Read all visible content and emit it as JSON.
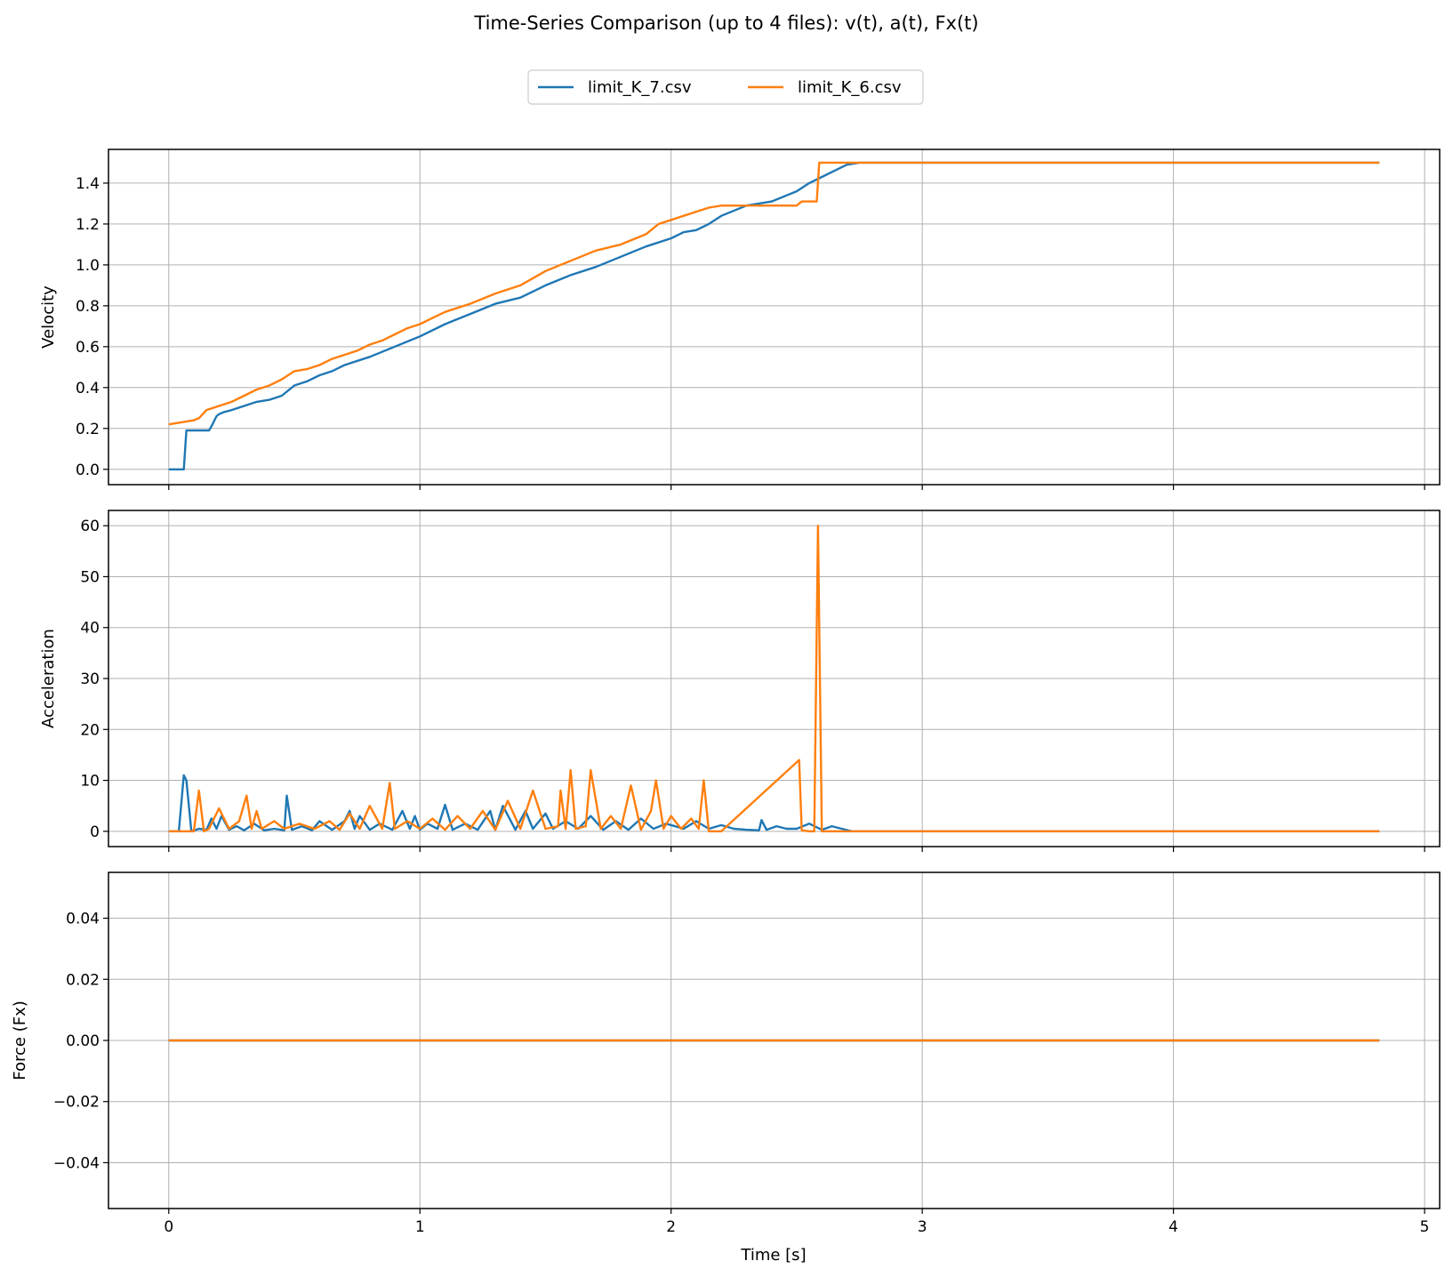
{
  "chart_data": {
    "type": "line",
    "title": "Time-Series Comparison (up to 4 files): v(t), a(t), Fx(t)",
    "legend": {
      "placement": "top-center",
      "entries": [
        {
          "name": "limit_K_7.csv",
          "color": "#1f77b4"
        },
        {
          "name": "limit_K_6.csv",
          "color": "#ff7f0e"
        }
      ]
    },
    "xlabel": "Time [s]",
    "xlim": [
      -0.24,
      5.06
    ],
    "x_ticks": [
      0,
      1,
      2,
      3,
      4,
      5
    ],
    "x_tick_labels": [
      "0",
      "1",
      "2",
      "3",
      "4",
      "5"
    ],
    "grid": true,
    "panels": [
      {
        "id": "velocity",
        "ylabel": "Velocity",
        "ylim": [
          -0.075,
          1.565
        ],
        "y_ticks": [
          0.0,
          0.2,
          0.4,
          0.6,
          0.8,
          1.0,
          1.2,
          1.4
        ],
        "y_tick_labels": [
          "0.0",
          "0.2",
          "0.4",
          "0.6",
          "0.8",
          "1.0",
          "1.2",
          "1.4"
        ],
        "series": [
          {
            "name": "limit_K_7.csv",
            "color": "#1f77b4",
            "x": [
              0,
              0.06,
              0.07,
              0.16,
              0.17,
              0.19,
              0.2,
              0.22,
              0.25,
              0.3,
              0.35,
              0.4,
              0.45,
              0.5,
              0.55,
              0.6,
              0.65,
              0.7,
              0.8,
              0.9,
              1.0,
              1.1,
              1.2,
              1.3,
              1.4,
              1.5,
              1.6,
              1.7,
              1.8,
              1.9,
              2.0,
              2.05,
              2.1,
              2.15,
              2.2,
              2.3,
              2.4,
              2.5,
              2.55,
              2.6,
              2.65,
              2.7,
              2.75,
              3.0,
              4.0,
              4.82
            ],
            "y": [
              0.0,
              0.0,
              0.19,
              0.19,
              0.21,
              0.26,
              0.27,
              0.28,
              0.29,
              0.31,
              0.33,
              0.34,
              0.36,
              0.41,
              0.43,
              0.46,
              0.48,
              0.51,
              0.55,
              0.6,
              0.65,
              0.71,
              0.76,
              0.81,
              0.84,
              0.9,
              0.95,
              0.99,
              1.04,
              1.09,
              1.13,
              1.16,
              1.17,
              1.2,
              1.24,
              1.29,
              1.31,
              1.36,
              1.4,
              1.43,
              1.46,
              1.49,
              1.5,
              1.5,
              1.5,
              1.5
            ]
          },
          {
            "name": "limit_K_6.csv",
            "color": "#ff7f0e",
            "x": [
              0,
              0.05,
              0.1,
              0.12,
              0.15,
              0.2,
              0.25,
              0.3,
              0.35,
              0.4,
              0.45,
              0.5,
              0.55,
              0.6,
              0.65,
              0.7,
              0.75,
              0.8,
              0.85,
              0.9,
              0.95,
              1.0,
              1.05,
              1.1,
              1.15,
              1.2,
              1.3,
              1.4,
              1.5,
              1.6,
              1.7,
              1.8,
              1.9,
              1.95,
              2.0,
              2.05,
              2.1,
              2.15,
              2.2,
              2.3,
              2.4,
              2.5,
              2.52,
              2.58,
              2.59,
              2.7,
              3.0,
              4.0,
              4.82
            ],
            "y": [
              0.22,
              0.23,
              0.24,
              0.25,
              0.29,
              0.31,
              0.33,
              0.36,
              0.39,
              0.41,
              0.44,
              0.48,
              0.49,
              0.51,
              0.54,
              0.56,
              0.58,
              0.61,
              0.63,
              0.66,
              0.69,
              0.71,
              0.74,
              0.77,
              0.79,
              0.81,
              0.86,
              0.9,
              0.97,
              1.02,
              1.07,
              1.1,
              1.15,
              1.2,
              1.22,
              1.24,
              1.26,
              1.28,
              1.29,
              1.29,
              1.29,
              1.29,
              1.31,
              1.31,
              1.5,
              1.5,
              1.5,
              1.5,
              1.5
            ]
          }
        ]
      },
      {
        "id": "acceleration",
        "ylabel": "Acceleration",
        "ylim": [
          -3,
          63
        ],
        "y_ticks": [
          0,
          10,
          20,
          30,
          40,
          50,
          60
        ],
        "y_tick_labels": [
          "0",
          "10",
          "20",
          "30",
          "40",
          "50",
          "60"
        ],
        "series": [
          {
            "name": "limit_K_7.csv",
            "color": "#1f77b4",
            "x": [
              0,
              0.04,
              0.06,
              0.07,
              0.09,
              0.12,
              0.15,
              0.17,
              0.19,
              0.21,
              0.24,
              0.27,
              0.3,
              0.34,
              0.38,
              0.42,
              0.46,
              0.47,
              0.49,
              0.53,
              0.57,
              0.6,
              0.65,
              0.7,
              0.72,
              0.74,
              0.76,
              0.8,
              0.84,
              0.89,
              0.93,
              0.96,
              0.98,
              1.0,
              1.03,
              1.07,
              1.1,
              1.13,
              1.18,
              1.23,
              1.28,
              1.3,
              1.33,
              1.38,
              1.42,
              1.45,
              1.5,
              1.53,
              1.58,
              1.63,
              1.68,
              1.73,
              1.78,
              1.83,
              1.88,
              1.93,
              1.98,
              2.05,
              2.1,
              2.15,
              2.2,
              2.25,
              2.3,
              2.35,
              2.36,
              2.38,
              2.42,
              2.46,
              2.5,
              2.55,
              2.6,
              2.64,
              2.68,
              2.72,
              3.0,
              4.0,
              4.82
            ],
            "y": [
              0,
              0,
              11,
              10,
              0,
              0.5,
              0.3,
              2.5,
              0.5,
              3,
              0.3,
              1,
              0.2,
              1.5,
              0.2,
              0.5,
              0.2,
              7,
              0.3,
              1,
              0.2,
              2,
              0.3,
              2,
              4,
              0.5,
              3,
              0.3,
              1.5,
              0.3,
              4,
              0.5,
              3,
              0.3,
              1.5,
              0.5,
              5.2,
              0.3,
              1.5,
              0.3,
              4,
              0.3,
              5,
              0.3,
              4,
              0.5,
              3.5,
              0.5,
              2,
              0.5,
              3,
              0.3,
              2,
              0.3,
              2.5,
              0.5,
              1.5,
              0.5,
              2,
              0.5,
              1.2,
              0.5,
              0.3,
              0.2,
              2.2,
              0.3,
              1,
              0.5,
              0.5,
              1.5,
              0.3,
              1,
              0.5,
              0,
              0,
              0,
              0
            ]
          },
          {
            "name": "limit_K_6.csv",
            "color": "#ff7f0e",
            "x": [
              0,
              0.1,
              0.12,
              0.14,
              0.16,
              0.2,
              0.24,
              0.28,
              0.31,
              0.33,
              0.35,
              0.37,
              0.42,
              0.46,
              0.52,
              0.58,
              0.64,
              0.68,
              0.72,
              0.76,
              0.8,
              0.85,
              0.88,
              0.9,
              0.95,
              1.0,
              1.05,
              1.1,
              1.15,
              1.2,
              1.25,
              1.3,
              1.35,
              1.4,
              1.45,
              1.5,
              1.55,
              1.56,
              1.58,
              1.6,
              1.62,
              1.66,
              1.68,
              1.72,
              1.76,
              1.8,
              1.84,
              1.88,
              1.92,
              1.94,
              1.97,
              2.0,
              2.04,
              2.08,
              2.11,
              2.13,
              2.15,
              2.2,
              2.51,
              2.52,
              2.55,
              2.57,
              2.585,
              2.6,
              2.65,
              2.7,
              3.0,
              4.0,
              4.82
            ],
            "y": [
              0,
              0,
              8,
              0,
              0.5,
              4.5,
              0.5,
              2,
              7,
              0.5,
              4,
              0.5,
              2,
              0.5,
              1.5,
              0.5,
              2,
              0.3,
              3.5,
              0.5,
              5,
              0.5,
              9.5,
              0.5,
              2,
              0.5,
              2.5,
              0.3,
              3,
              0.5,
              4,
              0.3,
              6,
              0.5,
              8,
              0.5,
              1,
              8,
              0.5,
              12,
              0.5,
              1,
              12,
              0.5,
              3,
              0.5,
              9,
              0.3,
              4,
              10,
              0.5,
              3,
              0.5,
              2.5,
              0.5,
              10,
              0,
              0,
              14,
              0.2,
              0,
              0,
              60,
              0,
              0,
              0,
              0,
              0,
              0
            ]
          }
        ]
      },
      {
        "id": "force",
        "ylabel": "Force (Fx)",
        "ylim": [
          -0.055,
          0.055
        ],
        "y_ticks": [
          -0.04,
          -0.02,
          0.0,
          0.02,
          0.04
        ],
        "y_tick_labels": [
          "−0.04",
          "−0.02",
          "0.00",
          "0.02",
          "0.04"
        ],
        "series": [
          {
            "name": "limit_K_7.csv",
            "color": "#1f77b4",
            "x": [
              0,
              4.82
            ],
            "y": [
              0,
              0
            ]
          },
          {
            "name": "limit_K_6.csv",
            "color": "#ff7f0e",
            "x": [
              0,
              4.82
            ],
            "y": [
              0,
              0
            ]
          }
        ]
      }
    ]
  }
}
